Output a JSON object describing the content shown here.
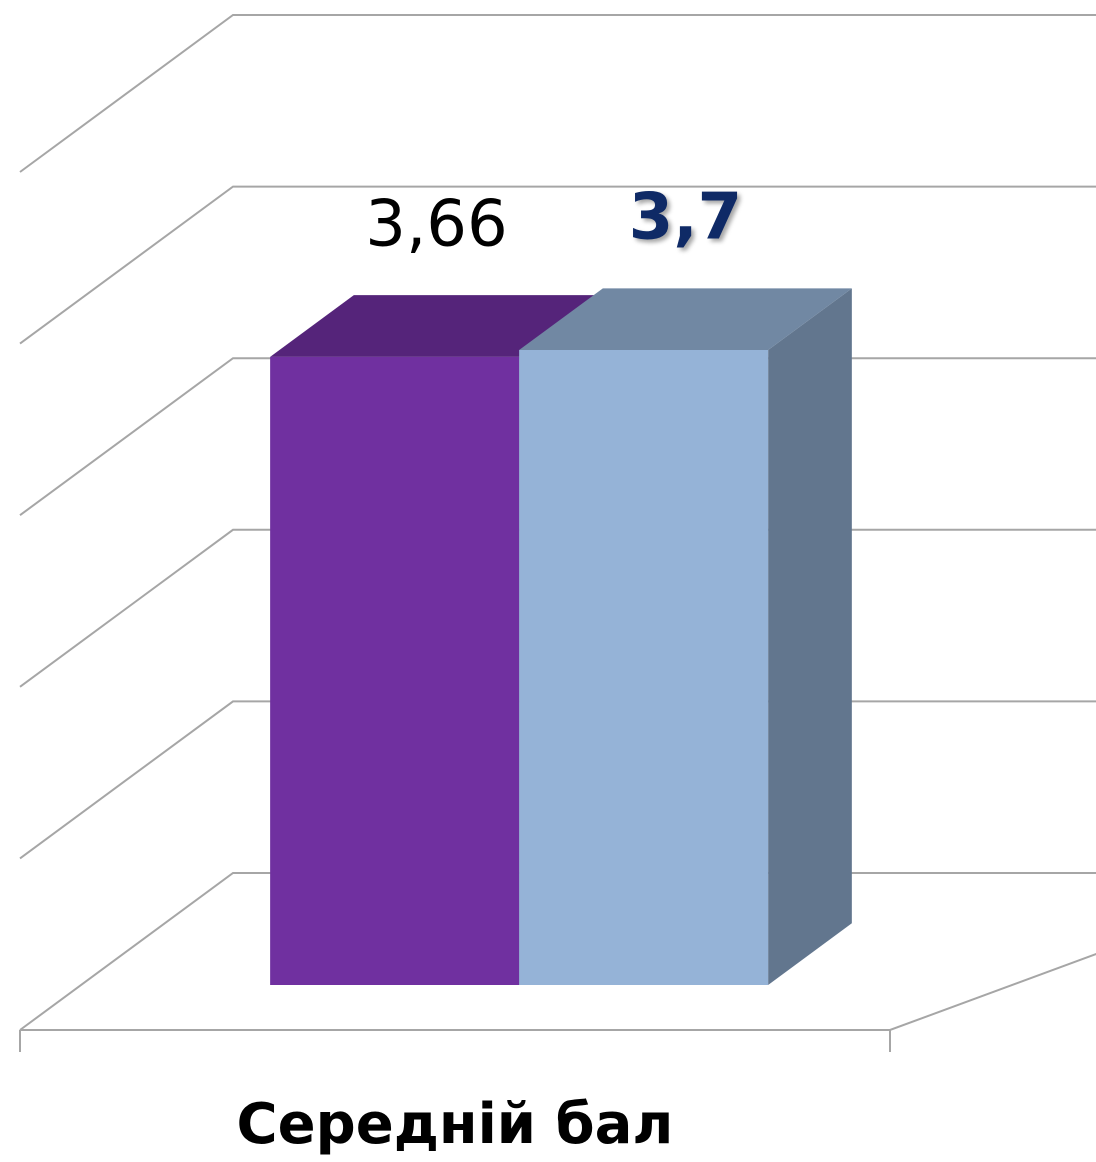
{
  "chart_data": {
    "type": "bar3d",
    "categories": [
      "Середній бал"
    ],
    "series": [
      {
        "color": "#7030a0",
        "values": [
          3.66
        ],
        "value_labels": [
          "3,66"
        ]
      },
      {
        "color": "#95b3d7",
        "values": [
          3.7
        ],
        "value_labels": [
          "3,7"
        ]
      }
    ],
    "ylim": [
      0,
      5
    ],
    "yticks": [
      0,
      1,
      2,
      3,
      4,
      5
    ],
    "grid": true
  }
}
